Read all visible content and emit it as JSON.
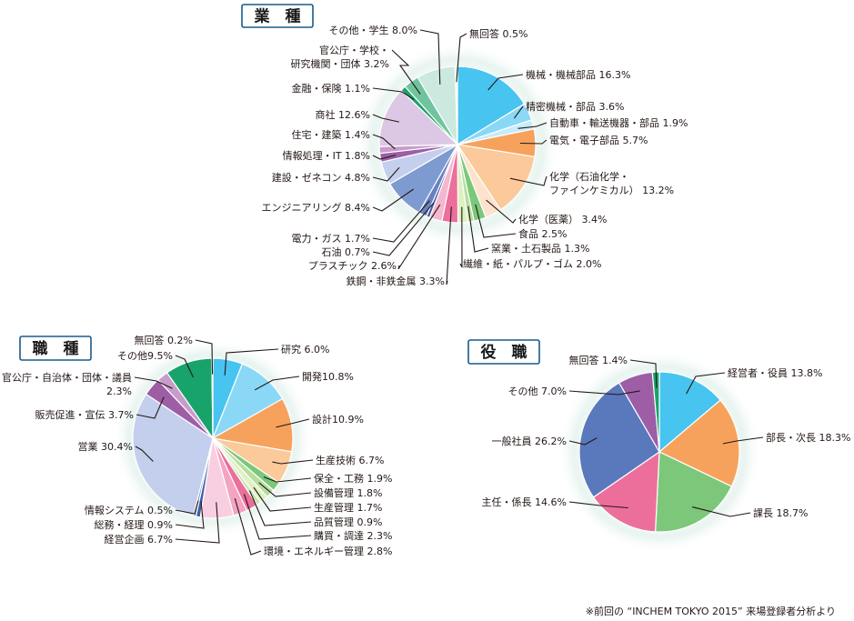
{
  "footnote": "※前回の “INCHEM TOKYO 2015” 来場登録者分析より",
  "chart_data": [
    {
      "type": "pie",
      "title": "業　種",
      "slices": [
        {
          "label": [
            "機械・機械部品 16.3%"
          ],
          "value": 16.3,
          "color": "#48c4f0"
        },
        {
          "label": [
            "精密機械・部品 3.6%"
          ],
          "value": 3.6,
          "color": "#8bd8f6"
        },
        {
          "label": [
            "自動車・輸送機器・部品 1.9%"
          ],
          "value": 1.9,
          "color": "#c5ecfb"
        },
        {
          "label": [
            "電気・電子部品 5.7%"
          ],
          "value": 5.7,
          "color": "#f7a25c"
        },
        {
          "label": [
            "化学（石油化学・",
            "ファインケミカル） 13.2%"
          ],
          "value": 13.2,
          "color": "#fbc99a"
        },
        {
          "label": [
            "化学（医薬） 3.4%"
          ],
          "value": 3.4,
          "color": "#fde3cc"
        },
        {
          "label": [
            "食品 2.5%"
          ],
          "value": 2.5,
          "color": "#7cc77a"
        },
        {
          "label": [
            "窯業・土石製品 1.3%"
          ],
          "value": 1.3,
          "color": "#b7de9f"
        },
        {
          "label": [
            "繊維・紙・パルプ・ゴム 2.0%"
          ],
          "value": 2.0,
          "color": "#dff0c2"
        },
        {
          "label": [
            "鉄鋼・非鉄金属 3.3%"
          ],
          "value": 3.3,
          "color": "#ec6f9b"
        },
        {
          "label": [
            "プラスチック 2.6%"
          ],
          "value": 2.6,
          "color": "#f4b7cf"
        },
        {
          "label": [
            "石油 0.7%"
          ],
          "value": 0.7,
          "color": "#3f5ea9"
        },
        {
          "label": [
            "電力・ガス 1.7%"
          ],
          "value": 1.7,
          "color": "#6780c0"
        },
        {
          "label": [
            "エンジニアリング 8.4%"
          ],
          "value": 8.4,
          "color": "#7e9bd1"
        },
        {
          "label": [
            "建設・ゼネコン 4.8%"
          ],
          "value": 4.8,
          "color": "#c3cfec"
        },
        {
          "label": [
            "情報処理・IT 1.8%"
          ],
          "value": 1.8,
          "color": "#9d5ea6"
        },
        {
          "label": [
            "住宅・建築 1.4%"
          ],
          "value": 1.4,
          "color": "#c79ccb"
        },
        {
          "label": [
            "商社 12.6%"
          ],
          "value": 12.6,
          "color": "#dcc7e4"
        },
        {
          "label": [
            "金融・保険 1.1%"
          ],
          "value": 1.1,
          "color": "#18a36b"
        },
        {
          "label": [
            "官公庁・学校・",
            "研究機関・団体 3.2%"
          ],
          "value": 3.2,
          "color": "#6fc49e"
        },
        {
          "label": [
            "その他・学生 8.0%"
          ],
          "value": 8.0,
          "color": "#cce9e0"
        },
        {
          "label": [
            "無回答 0.5%"
          ],
          "value": 0.5,
          "color": "#e6f2ef"
        }
      ]
    },
    {
      "type": "pie",
      "title": "職　種",
      "slices": [
        {
          "label": [
            "研究 6.0%"
          ],
          "value": 6.0,
          "color": "#48c4f0"
        },
        {
          "label": [
            "開発10.8%"
          ],
          "value": 10.8,
          "color": "#8bd8f6"
        },
        {
          "label": [
            "設計10.9%"
          ],
          "value": 10.9,
          "color": "#f7a25c"
        },
        {
          "label": [
            "生産技術 6.7%"
          ],
          "value": 6.7,
          "color": "#fbc99a"
        },
        {
          "label": [
            "保全・工務 1.9%"
          ],
          "value": 1.9,
          "color": "#7cc77a"
        },
        {
          "label": [
            "設備管理 1.8%"
          ],
          "value": 1.8,
          "color": "#b7de9f"
        },
        {
          "label": [
            "生産管理 1.7%"
          ],
          "value": 1.7,
          "color": "#dff0c2"
        },
        {
          "label": [
            "品質管理 0.9%"
          ],
          "value": 0.9,
          "color": "#c8e6b0"
        },
        {
          "label": [
            "購買・調達 2.3%"
          ],
          "value": 2.3,
          "color": "#ec6f9b"
        },
        {
          "label": [
            "環境・エネルギー管理 2.8%"
          ],
          "value": 2.8,
          "color": "#f4a3c2"
        },
        {
          "label": [
            "経営企画 6.7%"
          ],
          "value": 6.7,
          "color": "#f8cfe0"
        },
        {
          "label": [
            "総務・経理 0.9%"
          ],
          "value": 0.9,
          "color": "#3f5ea9"
        },
        {
          "label": [
            "情報システム 0.5%"
          ],
          "value": 0.5,
          "color": "#6780c0"
        },
        {
          "label": [
            "営業 30.4%"
          ],
          "value": 30.4,
          "color": "#c3cfec"
        },
        {
          "label": [
            "販売促進・宣伝 3.7%"
          ],
          "value": 3.7,
          "color": "#9d5ea6"
        },
        {
          "label": [
            "官公庁・自治体・団体・議員",
            "2.3%"
          ],
          "value": 2.3,
          "color": "#c79ccb"
        },
        {
          "label": [
            "その他9.5%"
          ],
          "value": 9.5,
          "color": "#18a36b"
        },
        {
          "label": [
            "無回答 0.2%"
          ],
          "value": 0.2,
          "color": "#6fc49e"
        }
      ]
    },
    {
      "type": "pie",
      "title": "役　職",
      "slices": [
        {
          "label": [
            "経営者・役員 13.8%"
          ],
          "value": 13.8,
          "color": "#48c4f0"
        },
        {
          "label": [
            "部長・次長 18.3%"
          ],
          "value": 18.3,
          "color": "#f7a25c"
        },
        {
          "label": [
            "課長 18.7%"
          ],
          "value": 18.7,
          "color": "#7cc77a"
        },
        {
          "label": [
            "主任・係長 14.6%"
          ],
          "value": 14.6,
          "color": "#ec6f9b"
        },
        {
          "label": [
            "一般社員 26.2%"
          ],
          "value": 26.2,
          "color": "#5a78bc"
        },
        {
          "label": [
            "その他 7.0%"
          ],
          "value": 7.0,
          "color": "#9d5ea6"
        },
        {
          "label": [
            "無回答 1.4%"
          ],
          "value": 1.4,
          "color": "#18a36b"
        }
      ]
    }
  ]
}
